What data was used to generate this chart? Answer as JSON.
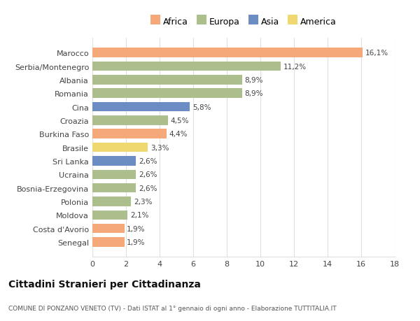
{
  "categories": [
    "Marocco",
    "Serbia/Montenegro",
    "Albania",
    "Romania",
    "Cina",
    "Croazia",
    "Burkina Faso",
    "Brasile",
    "Sri Lanka",
    "Ucraina",
    "Bosnia-Erzegovina",
    "Polonia",
    "Moldova",
    "Costa d'Avorio",
    "Senegal"
  ],
  "values": [
    16.1,
    11.2,
    8.9,
    8.9,
    5.8,
    4.5,
    4.4,
    3.3,
    2.6,
    2.6,
    2.6,
    2.3,
    2.1,
    1.9,
    1.9
  ],
  "labels": [
    "16,1%",
    "11,2%",
    "8,9%",
    "8,9%",
    "5,8%",
    "4,5%",
    "4,4%",
    "3,3%",
    "2,6%",
    "2,6%",
    "2,6%",
    "2,3%",
    "2,1%",
    "1,9%",
    "1,9%"
  ],
  "continents": [
    "Africa",
    "Europa",
    "Europa",
    "Europa",
    "Asia",
    "Europa",
    "Africa",
    "America",
    "Asia",
    "Europa",
    "Europa",
    "Europa",
    "Europa",
    "Africa",
    "Africa"
  ],
  "colors": {
    "Africa": "#F5A97A",
    "Europa": "#ABBE8C",
    "Asia": "#6B8DC4",
    "America": "#F0D870"
  },
  "legend_order": [
    "Africa",
    "Europa",
    "Asia",
    "America"
  ],
  "title": "Cittadini Stranieri per Cittadinanza",
  "subtitle": "COMUNE DI PONZANO VENETO (TV) - Dati ISTAT al 1° gennaio di ogni anno - Elaborazione TUTTITALIA.IT",
  "xlim": [
    0,
    18
  ],
  "xticks": [
    0,
    2,
    4,
    6,
    8,
    10,
    12,
    14,
    16,
    18
  ],
  "background_color": "#ffffff",
  "grid_color": "#e0e0e0",
  "bar_height": 0.7
}
